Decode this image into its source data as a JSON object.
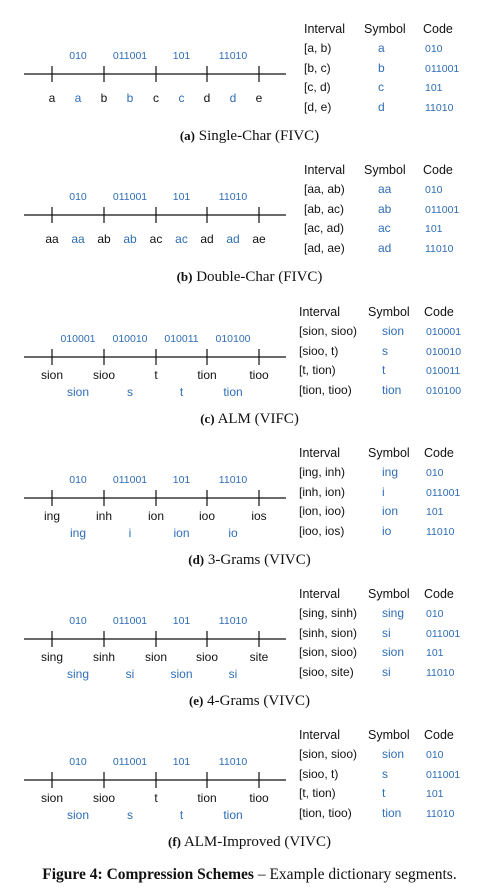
{
  "figure": {
    "label": "Figure 4:",
    "title": "Compression Schemes",
    "description": "– Example dictionary segments."
  },
  "panels": [
    {
      "tag": "(a)",
      "caption": "Single-Char (FIVC)",
      "codes": [
        "010",
        "011001",
        "101",
        "11010"
      ],
      "bounds": [
        "a",
        "b",
        "c",
        "d",
        "e"
      ],
      "symbols": [
        "a",
        "b",
        "c",
        "d"
      ],
      "labels_two_rows": false,
      "headers": [
        "Interval",
        "Symbol",
        "Code"
      ],
      "rows": [
        [
          "[a, b)",
          "a",
          "010"
        ],
        [
          "[b, c)",
          "b",
          "011001"
        ],
        [
          "[c, d)",
          "c",
          "101"
        ],
        [
          "[d, e)",
          "d",
          "11010"
        ]
      ]
    },
    {
      "tag": "(b)",
      "caption": "Double-Char (FIVC)",
      "codes": [
        "010",
        "011001",
        "101",
        "11010"
      ],
      "bounds": [
        "aa",
        "ab",
        "ac",
        "ad",
        "ae"
      ],
      "symbols": [
        "aa",
        "ab",
        "ac",
        "ad"
      ],
      "labels_two_rows": false,
      "headers": [
        "Interval",
        "Symbol",
        "Code"
      ],
      "rows": [
        [
          "[aa, ab)",
          "aa",
          "010"
        ],
        [
          "[ab, ac)",
          "ab",
          "011001"
        ],
        [
          "[ac, ad)",
          "ac",
          "101"
        ],
        [
          "[ad, ae)",
          "ad",
          "11010"
        ]
      ]
    },
    {
      "tag": "(c)",
      "caption": "ALM (VIFC)",
      "codes": [
        "010001",
        "010010",
        "010011",
        "010100"
      ],
      "bounds": [
        "sion",
        "sioo",
        "t",
        "tion",
        "tioo"
      ],
      "symbols": [
        "sion",
        "s",
        "t",
        "tion"
      ],
      "labels_two_rows": true,
      "headers": [
        "Interval",
        "Symbol",
        "Code"
      ],
      "rows": [
        [
          "[sion, sioo)",
          "sion",
          "010001"
        ],
        [
          "[sioo, t)",
          "s",
          "010010"
        ],
        [
          "[t, tion)",
          "t",
          "010011"
        ],
        [
          "[tion, tioo)",
          "tion",
          "010100"
        ]
      ]
    },
    {
      "tag": "(d)",
      "caption": "3-Grams (VIVC)",
      "codes": [
        "010",
        "011001",
        "101",
        "11010"
      ],
      "bounds": [
        "ing",
        "inh",
        "ion",
        "ioo",
        "ios"
      ],
      "symbols": [
        "ing",
        "i",
        "ion",
        "io"
      ],
      "labels_two_rows": true,
      "headers": [
        "Interval",
        "Symbol",
        "Code"
      ],
      "rows": [
        [
          "[ing, inh)",
          "ing",
          "010"
        ],
        [
          "[inh, ion)",
          "i",
          "011001"
        ],
        [
          "[ion, ioo)",
          "ion",
          "101"
        ],
        [
          "[ioo, ios)",
          "io",
          "11010"
        ]
      ]
    },
    {
      "tag": "(e)",
      "caption": "4-Grams (VIVC)",
      "codes": [
        "010",
        "011001",
        "101",
        "11010"
      ],
      "bounds": [
        "sing",
        "sinh",
        "sion",
        "sioo",
        "site"
      ],
      "symbols": [
        "sing",
        "si",
        "sion",
        "si"
      ],
      "labels_two_rows": true,
      "headers": [
        "Interval",
        "Symbol",
        "Code"
      ],
      "rows": [
        [
          "[sing, sinh)",
          "sing",
          "010"
        ],
        [
          "[sinh, sion)",
          "si",
          "011001"
        ],
        [
          "[sion, sioo)",
          "sion",
          "101"
        ],
        [
          "[sioo, site)",
          "si",
          "11010"
        ]
      ]
    },
    {
      "tag": "(f)",
      "caption": "ALM-Improved (VIVC)",
      "codes": [
        "010",
        "011001",
        "101",
        "11010"
      ],
      "bounds": [
        "sion",
        "sioo",
        "t",
        "tion",
        "tioo"
      ],
      "symbols": [
        "sion",
        "s",
        "t",
        "tion"
      ],
      "labels_two_rows": true,
      "headers": [
        "Interval",
        "Symbol",
        "Code"
      ],
      "rows": [
        [
          "[sion, sioo)",
          "sion",
          "010"
        ],
        [
          "[sioo, t)",
          "s",
          "011001"
        ],
        [
          "[t, tion)",
          "t",
          "101"
        ],
        [
          "[tion, tioo)",
          "tion",
          "11010"
        ]
      ]
    }
  ],
  "colors": {
    "ink": "#111111",
    "accent": "#2f6db5"
  }
}
